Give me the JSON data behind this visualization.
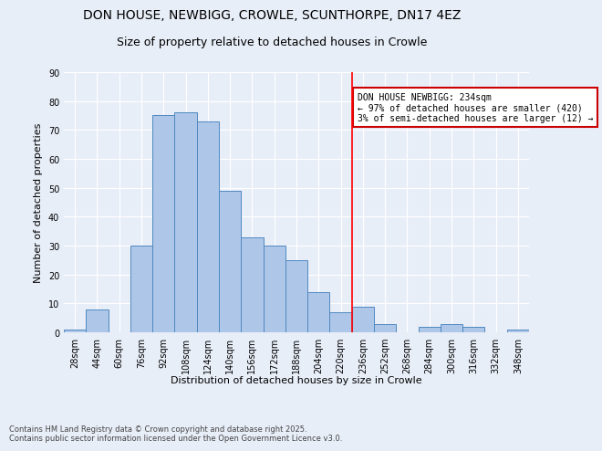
{
  "title1": "DON HOUSE, NEWBIGG, CROWLE, SCUNTHORPE, DN17 4EZ",
  "title2": "Size of property relative to detached houses in Crowle",
  "xlabel": "Distribution of detached houses by size in Crowle",
  "ylabel": "Number of detached properties",
  "bin_labels": [
    "28sqm",
    "44sqm",
    "60sqm",
    "76sqm",
    "92sqm",
    "108sqm",
    "124sqm",
    "140sqm",
    "156sqm",
    "172sqm",
    "188sqm",
    "204sqm",
    "220sqm",
    "236sqm",
    "252sqm",
    "268sqm",
    "284sqm",
    "300sqm",
    "316sqm",
    "332sqm",
    "348sqm"
  ],
  "bin_edges": [
    28,
    44,
    60,
    76,
    92,
    108,
    124,
    140,
    156,
    172,
    188,
    204,
    220,
    236,
    252,
    268,
    284,
    300,
    316,
    332,
    348
  ],
  "bar_heights": [
    1,
    8,
    0,
    30,
    75,
    76,
    73,
    49,
    33,
    30,
    25,
    14,
    7,
    9,
    3,
    0,
    2,
    3,
    2,
    0,
    1
  ],
  "bar_color": "#aec6e8",
  "bar_edgecolor": "#4f89c0",
  "bg_color": "#e8eef8",
  "grid_color": "#ffffff",
  "ref_line_x": 236,
  "annotation_text": "DON HOUSE NEWBIGG: 234sqm\n← 97% of detached houses are smaller (420)\n3% of semi-detached houses are larger (12) →",
  "annotation_box_color": "#ffffff",
  "annotation_box_edgecolor": "#cc0000",
  "ylim": [
    0,
    90
  ],
  "yticks": [
    0,
    10,
    20,
    30,
    40,
    50,
    60,
    70,
    80,
    90
  ],
  "footer": "Contains HM Land Registry data © Crown copyright and database right 2025.\nContains public sector information licensed under the Open Government Licence v3.0.",
  "title_fontsize": 10,
  "subtitle_fontsize": 9,
  "axis_label_fontsize": 8,
  "tick_fontsize": 7,
  "annotation_fontsize": 7,
  "footer_fontsize": 6
}
